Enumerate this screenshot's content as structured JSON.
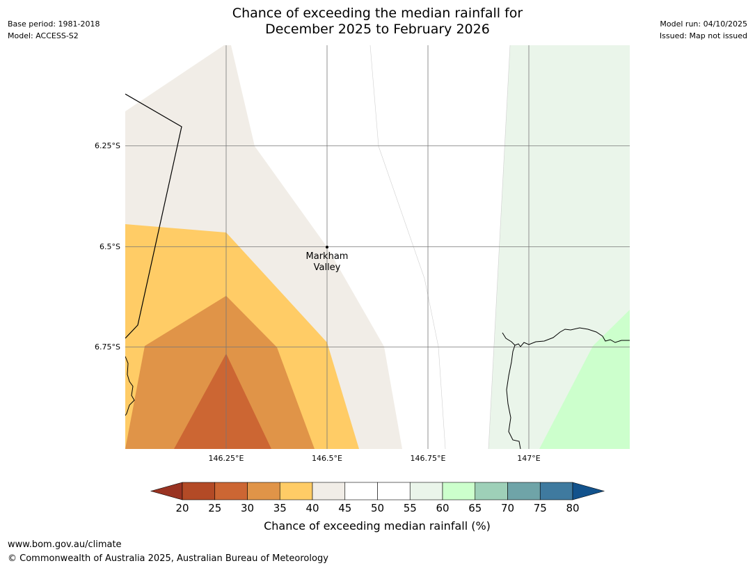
{
  "header": {
    "title_line1": "Chance of exceeding the median rainfall for",
    "title_line2": "December 2025 to February 2026",
    "base_period": "Base period: 1981-2018",
    "model": "Model: ACCESS-S2",
    "model_run": "Model run: 04/10/2025",
    "issued": "Issued: Map not issued"
  },
  "map": {
    "lat_labels": [
      "6.25°S",
      "6.5°S",
      "6.75°S"
    ],
    "lon_labels": [
      "146.25°E",
      "146.5°E",
      "146.75°E",
      "147°E"
    ],
    "place": {
      "line1": "Markham",
      "line2": "Valley"
    },
    "fill_colors": {
      "c30_35": "#cc6633",
      "c35_40": "#e09448",
      "c40_45": "#ffcc66",
      "c45_50": "#f1ede7",
      "c55_60": "#eaf5ea",
      "c60_65": "#ccffcc"
    }
  },
  "colorbar": {
    "title": "Chance of exceeding median rainfall (%)",
    "ticks": [
      "20",
      "25",
      "30",
      "35",
      "40",
      "45",
      "50",
      "55",
      "60",
      "65",
      "70",
      "75",
      "80"
    ],
    "colors": [
      "#993322",
      "#b34a26",
      "#cc6633",
      "#e09448",
      "#ffcc66",
      "#f1ede7",
      "#ffffff",
      "#ffffff",
      "#eaf5ea",
      "#ccffcc",
      "#9ed0b8",
      "#6fa4a8",
      "#3f7a9f",
      "#12528c"
    ]
  },
  "footer": {
    "url": "www.bom.gov.au/climate",
    "copyright": "© Commonwealth of Australia 2025, Australian Bureau of Meteorology"
  }
}
